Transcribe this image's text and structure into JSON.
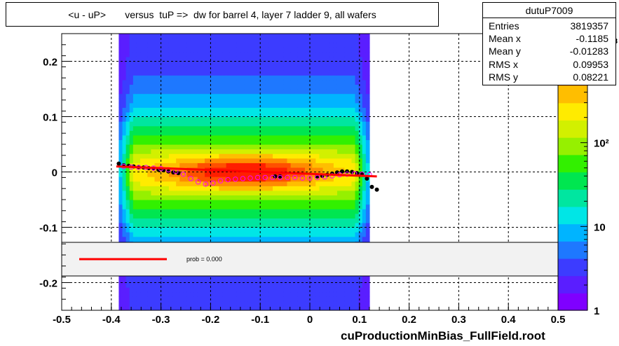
{
  "title": "<u - uP>       versus  tuP =>  dw for barrel 4, layer 7 ladder 9, all wafers",
  "stats": {
    "name": "dutuP7009",
    "rows": [
      {
        "key": "Entries",
        "value": "3819357"
      },
      {
        "key": "Mean x",
        "value": "-0.1185"
      },
      {
        "key": "Mean y",
        "value": "-0.01283"
      },
      {
        "key": "RMS x",
        "value": "0.09953"
      },
      {
        "key": "RMS y",
        "value": "0.08221"
      }
    ]
  },
  "legend": {
    "label": "prob = 0.000",
    "line_color": "#ff0000"
  },
  "footer": "cuProductionMinBias_FullField.root",
  "chart_data": {
    "type": "heatmap",
    "title": "<u - uP>       versus  tuP =>  dw for barrel 4, layer 7 ladder 9, all wafers",
    "xlabel": "",
    "ylabel": "",
    "xlim": [
      -0.5,
      0.5
    ],
    "ylim": [
      -0.25,
      0.25
    ],
    "x_ticks": [
      -0.5,
      -0.4,
      -0.3,
      -0.2,
      -0.1,
      0,
      0.1,
      0.2,
      0.3,
      0.4,
      0.5
    ],
    "x_tick_labels": [
      "-0.5",
      "-0.4",
      "-0.3",
      "-0.2",
      "-0.1",
      "0",
      "0.1",
      "0.2",
      "0.3",
      "0.4",
      "0.5"
    ],
    "y_ticks": [
      -0.2,
      -0.1,
      0,
      0.1,
      0.2
    ],
    "y_tick_labels": [
      "-0.2",
      "-0.1",
      "0",
      "0.1",
      "0.2"
    ],
    "grid": true,
    "z_scale": "log",
    "z_ticks": [
      1,
      10,
      100
    ],
    "z_tick_labels": [
      "1",
      "10",
      "10²"
    ],
    "z_top_label_fragment": "3",
    "filled_x_range": [
      -0.385,
      0.12
    ],
    "series": [
      {
        "name": "mean points",
        "marker": "filled-circle",
        "color": "#000000",
        "x": [
          -0.385,
          -0.375,
          -0.365,
          -0.355,
          -0.345,
          -0.335,
          -0.325,
          -0.315,
          -0.305,
          -0.295,
          -0.285,
          -0.275,
          -0.265,
          -0.07,
          -0.06,
          0.015,
          0.025,
          0.035,
          0.045,
          0.055,
          0.065,
          0.075,
          0.085,
          0.095,
          0.105,
          0.115,
          0.125,
          0.135
        ],
        "y": [
          0.015,
          0.012,
          0.011,
          0.01,
          0.009,
          0.008,
          0.007,
          0.006,
          0.004,
          0.003,
          0.001,
          -0.001,
          -0.002,
          -0.008,
          -0.008,
          -0.008,
          -0.007,
          -0.005,
          -0.003,
          -0.001,
          0.001,
          0.001,
          0.0,
          -0.002,
          -0.004,
          -0.012,
          -0.027,
          -0.032
        ]
      },
      {
        "name": "most probable points",
        "marker": "open-circle",
        "color": "#ff00ff",
        "x": [
          -0.375,
          -0.36,
          -0.345,
          -0.33,
          -0.315,
          -0.3,
          -0.285,
          -0.27,
          -0.255,
          -0.24,
          -0.225,
          -0.21,
          -0.195,
          -0.18,
          -0.165,
          -0.15,
          -0.135,
          -0.12,
          -0.105,
          -0.09,
          -0.075,
          -0.06,
          -0.045,
          -0.03,
          -0.015,
          0.0,
          0.015,
          0.03,
          0.045,
          0.06,
          0.075,
          0.09,
          0.105,
          0.12
        ],
        "y": [
          0.01,
          0.009,
          0.008,
          0.008,
          0.007,
          0.006,
          0.004,
          0.001,
          -0.004,
          -0.012,
          -0.018,
          -0.022,
          -0.02,
          -0.016,
          -0.014,
          -0.013,
          -0.012,
          -0.011,
          -0.01,
          -0.01,
          -0.01,
          -0.01,
          -0.01,
          -0.01,
          -0.011,
          -0.011,
          -0.01,
          -0.009,
          -0.007,
          -0.005,
          -0.004,
          -0.003,
          -0.004,
          -0.005
        ]
      },
      {
        "name": "fit",
        "type": "line",
        "color": "#ff0000",
        "x": [
          -0.39,
          0.135
        ],
        "y": [
          0.01,
          -0.008
        ]
      }
    ]
  }
}
